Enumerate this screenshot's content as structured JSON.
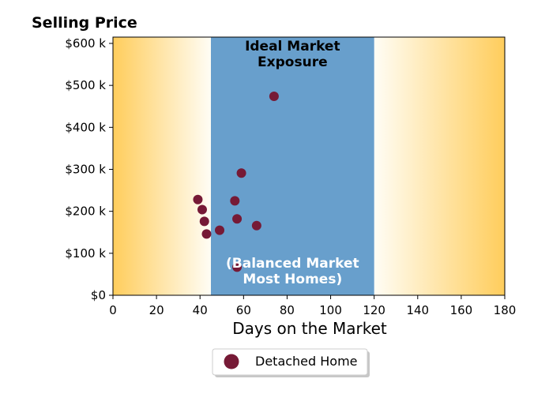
{
  "chart_data": {
    "type": "scatter",
    "title": "Selling Price",
    "xlabel": "Days on the Market",
    "ylabel": "",
    "xlim": [
      0,
      180
    ],
    "ylim": [
      0,
      615000
    ],
    "x_ticks": [
      0,
      20,
      40,
      60,
      80,
      100,
      120,
      140,
      160,
      180
    ],
    "x_tick_labels": [
      "0",
      "20",
      "40",
      "60",
      "80",
      "100",
      "120",
      "140",
      "160",
      "180"
    ],
    "y_ticks": [
      0,
      100000,
      200000,
      300000,
      400000,
      500000,
      600000
    ],
    "y_tick_labels": [
      "$0",
      "$100 k",
      "$200 k",
      "$300 k",
      "$400 k",
      "$500 k",
      "$600 k"
    ],
    "grid": false,
    "legend_position": "bottom-center",
    "shaded_band": {
      "x_range": [
        45,
        120
      ],
      "color": "#689fcc",
      "top_label": [
        "Ideal Market",
        "Exposure"
      ],
      "bottom_label": [
        "(Balanced Market",
        "Most Homes)"
      ]
    },
    "background_gradient": {
      "edge_color": "#ffcd5c",
      "center_color": "#fffdf5"
    },
    "series": [
      {
        "name": "Detached Home",
        "color": "#761a36",
        "points": [
          {
            "x": 39,
            "y": 228000
          },
          {
            "x": 41,
            "y": 204000
          },
          {
            "x": 42,
            "y": 176000
          },
          {
            "x": 43,
            "y": 146000
          },
          {
            "x": 49,
            "y": 155000
          },
          {
            "x": 56,
            "y": 225000
          },
          {
            "x": 57,
            "y": 182000
          },
          {
            "x": 57,
            "y": 67000
          },
          {
            "x": 59,
            "y": 291000
          },
          {
            "x": 66,
            "y": 166000
          },
          {
            "x": 74,
            "y": 474000
          }
        ]
      }
    ]
  }
}
